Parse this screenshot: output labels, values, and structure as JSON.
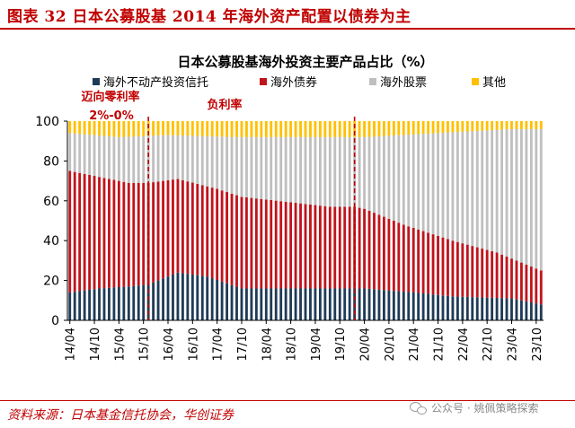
{
  "figure": {
    "label": "图表 32  日本公募股基 2014 年海外资产配置以债券为主",
    "source": "资料来源：日本基金信托协会，华创证券",
    "watermark": "公众号 · 姚佩策略探索"
  },
  "chart_data": {
    "type": "bar",
    "stacked": true,
    "title": "日本公募股基海外投资主要产品占比（%）",
    "xlabel": "",
    "ylabel": "",
    "ylim": [
      0,
      100
    ],
    "yticks": [
      0,
      20,
      40,
      60,
      80,
      100
    ],
    "legend_position": "top",
    "x_tick_labels": [
      "14/04",
      "14/10",
      "15/04",
      "15/10",
      "16/04",
      "16/10",
      "17/04",
      "17/10",
      "18/04",
      "18/10",
      "19/04",
      "19/10",
      "20/04",
      "20/10",
      "21/04",
      "21/10",
      "22/04",
      "22/10",
      "23/04",
      "23/10"
    ],
    "colors": {
      "reit": "#1f3b57",
      "bond": "#c0141c",
      "equity": "#bfbfbf",
      "other": "#ffc000",
      "annotation": "#c00000"
    },
    "series": [
      {
        "name": "海外不动产投资信托",
        "key": "reit",
        "color": "#1f3b57",
        "anchors": [
          [
            0,
            14
          ],
          [
            6,
            16
          ],
          [
            12,
            17
          ],
          [
            16,
            18
          ],
          [
            22,
            24
          ],
          [
            28,
            22
          ],
          [
            35,
            16
          ],
          [
            60,
            16
          ],
          [
            70,
            14
          ],
          [
            78,
            12
          ],
          [
            90,
            11
          ],
          [
            96,
            8
          ]
        ]
      },
      {
        "name": "海外债券",
        "key": "bond",
        "color": "#c0141c",
        "anchors": [
          [
            0,
            75
          ],
          [
            6,
            72
          ],
          [
            12,
            69
          ],
          [
            16,
            69
          ],
          [
            22,
            71
          ],
          [
            30,
            66
          ],
          [
            35,
            62
          ],
          [
            46,
            59
          ],
          [
            53,
            57
          ],
          [
            58,
            57
          ],
          [
            60,
            56
          ],
          [
            68,
            48
          ],
          [
            78,
            40
          ],
          [
            87,
            34
          ],
          [
            96,
            25
          ]
        ]
      },
      {
        "name": "海外股票",
        "key": "equity",
        "color": "#bfbfbf",
        "anchors": [
          [
            0,
            94
          ],
          [
            10,
            92
          ],
          [
            20,
            93
          ],
          [
            34,
            92
          ],
          [
            60,
            92
          ],
          [
            90,
            96
          ],
          [
            96,
            96
          ]
        ]
      },
      {
        "name": "其他",
        "key": "other",
        "color": "#ffc000",
        "anchors": [
          [
            0,
            100
          ],
          [
            96,
            100
          ]
        ]
      }
    ],
    "bar_count": 97,
    "annotations": [
      {
        "text": "迈向零利率",
        "at_bar": 16
      },
      {
        "text": "2%-0%",
        "at_bar": 16
      },
      {
        "text": "负利率",
        "at_bar": 29
      }
    ],
    "vlines_at_bar": [
      16.5,
      58.5
    ]
  }
}
